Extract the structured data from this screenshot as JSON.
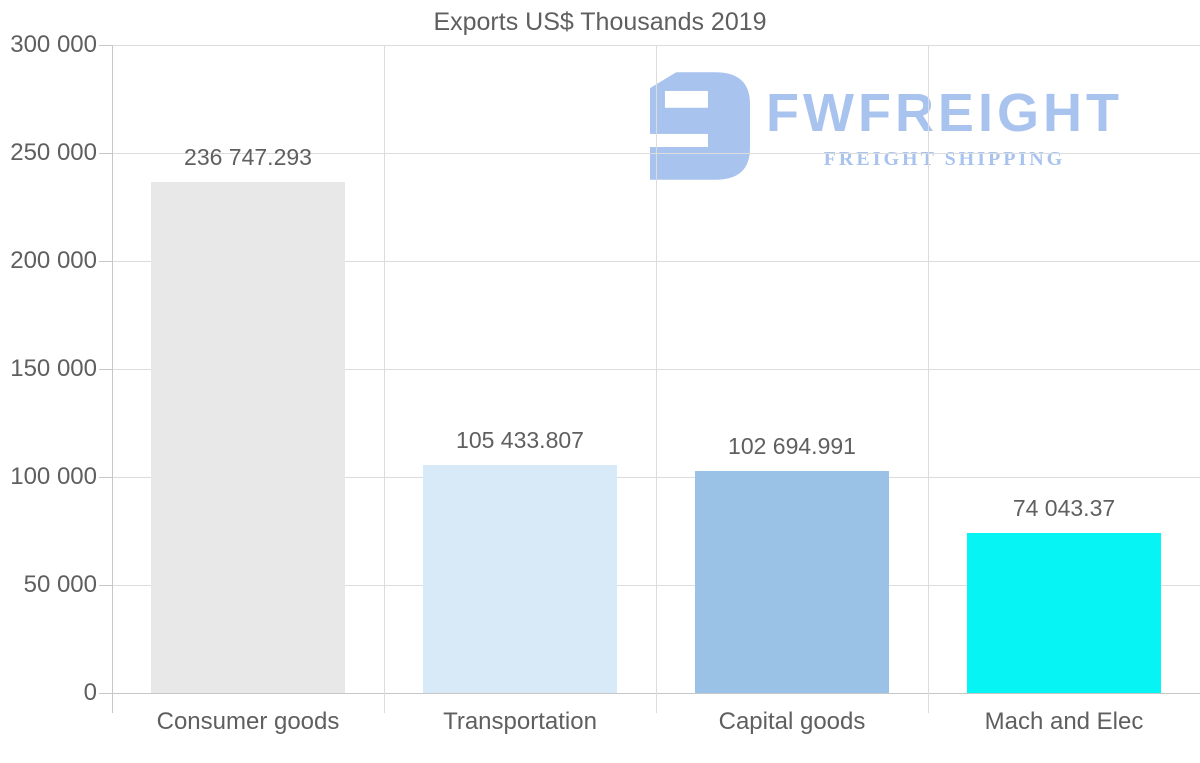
{
  "chart_data": {
    "type": "bar",
    "title": "Exports US$ Thousands 2019",
    "categories": [
      "Consumer goods",
      "Transportation",
      "Capital goods",
      "Mach and Elec"
    ],
    "values": [
      236747.293,
      105433.807,
      102694.991,
      74043.37
    ],
    "value_labels": [
      "236 747.293",
      "105 433.807",
      "102 694.991",
      "74 043.37"
    ],
    "bar_colors": [
      "#e8e8e8",
      "#d8e9f8",
      "#9ac2e6",
      "#06f4f4"
    ],
    "xlabel": "",
    "ylabel": "",
    "ylim": [
      0,
      300000
    ],
    "y_ticks": [
      {
        "value": 0,
        "label": "0"
      },
      {
        "value": 50000,
        "label": "50 000"
      },
      {
        "value": 100000,
        "label": "100 000"
      },
      {
        "value": 150000,
        "label": "150 000"
      },
      {
        "value": 200000,
        "label": "200 000"
      },
      {
        "value": 250000,
        "label": "250 000"
      },
      {
        "value": 300000,
        "label": "300 000"
      }
    ],
    "grid": "horizontal gridlines with vertical category separators",
    "legend": "none"
  },
  "watermark": {
    "brand": "FWFREIGHT",
    "tagline": "FREIGHT SHIPPING",
    "color": "#a9c3ef"
  },
  "colors": {
    "title_text": "#5f5f5f",
    "axis_text": "#5f5f5f",
    "value_label_text": "#5f5f5f",
    "gridline": "#dcdcdc",
    "axis_line": "#c7c7c7",
    "background": "#ffffff"
  }
}
